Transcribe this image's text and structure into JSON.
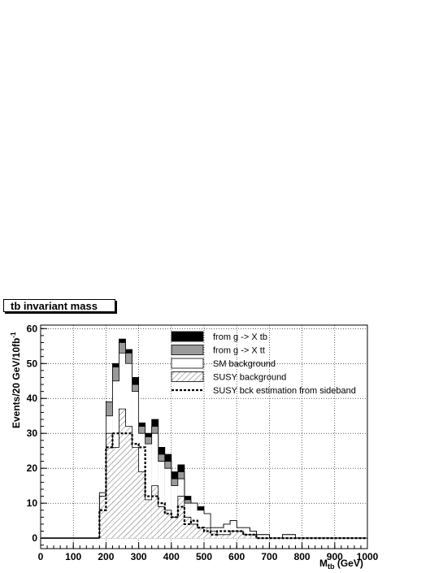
{
  "chart_data": {
    "type": "area",
    "title": "tb invariant mass",
    "xlabel": "M",
    "xlabel_sub": "tb",
    "xlabel_unit": " (GeV)",
    "ylabel": "Events/20 GeV/10fb",
    "ylabel_sup": "-1",
    "xlim": [
      0,
      1000
    ],
    "ylim": [
      -3,
      61
    ],
    "x_ticks": [
      0,
      100,
      200,
      300,
      400,
      500,
      600,
      700,
      800,
      900,
      1000
    ],
    "y_ticks": [
      0,
      10,
      20,
      30,
      40,
      50,
      60
    ],
    "grid": true,
    "legend_position": "top-right",
    "bin_width": 20,
    "bin_edges": [
      180,
      200,
      220,
      240,
      260,
      280,
      300,
      320,
      340,
      360,
      380,
      400,
      420,
      440,
      460,
      480,
      500,
      520,
      540,
      560,
      580,
      600,
      620,
      640,
      660,
      680,
      700,
      720,
      740,
      760,
      780,
      800,
      820,
      840,
      860,
      880,
      900,
      920,
      940,
      960,
      980,
      1000
    ],
    "series": [
      {
        "name": "from g -> X tb",
        "style": "solid-black",
        "values": [
          13,
          39,
          50,
          57,
          54,
          46,
          33,
          30,
          34,
          26,
          24,
          19,
          21,
          12,
          10,
          9,
          7,
          3,
          3,
          4,
          5,
          3,
          3,
          2,
          1,
          1,
          0,
          0,
          1,
          1,
          0,
          0,
          0,
          0,
          0,
          0,
          0,
          0,
          0,
          0,
          0
        ]
      },
      {
        "name": "from g -> X tt",
        "style": "solid-gray",
        "values": [
          13,
          39,
          49,
          56,
          53,
          44,
          32,
          29,
          32,
          24,
          22,
          17,
          19,
          11,
          10,
          8,
          7,
          3,
          3,
          4,
          5,
          3,
          3,
          2,
          1,
          1,
          0,
          0,
          1,
          1,
          0,
          0,
          0,
          0,
          0,
          0,
          0,
          0,
          0,
          0,
          0
        ]
      },
      {
        "name": "SM background",
        "style": "hollow",
        "values": [
          13,
          35,
          45,
          53,
          50,
          42,
          30,
          27,
          30,
          22,
          20,
          15,
          17,
          10,
          10,
          8,
          7,
          3,
          3,
          4,
          5,
          3,
          3,
          2,
          1,
          1,
          0,
          0,
          1,
          1,
          0,
          0,
          0,
          0,
          0,
          0,
          0,
          0,
          0,
          0,
          0
        ]
      },
      {
        "name": "SUSY background",
        "style": "hatched",
        "values": [
          12,
          30,
          26,
          37,
          32,
          26,
          19,
          11,
          15,
          9,
          8,
          6,
          12,
          6,
          4,
          3,
          3,
          2,
          1,
          1,
          2,
          2,
          1,
          1,
          0,
          0,
          0,
          0,
          0,
          0,
          0,
          0,
          0,
          0,
          0,
          0,
          0,
          0,
          0,
          0,
          0
        ]
      },
      {
        "name": "SUSY bck estimation from sideband",
        "style": "dashed",
        "values": [
          8,
          26,
          30,
          30,
          30,
          27,
          26,
          12,
          12,
          10,
          7,
          6,
          9,
          4,
          5,
          3,
          2,
          1,
          2,
          2,
          2,
          2,
          1,
          1,
          0,
          0,
          0,
          0,
          0,
          0,
          0,
          0,
          0,
          0,
          0,
          0,
          0,
          0,
          0,
          0,
          0
        ]
      }
    ]
  }
}
